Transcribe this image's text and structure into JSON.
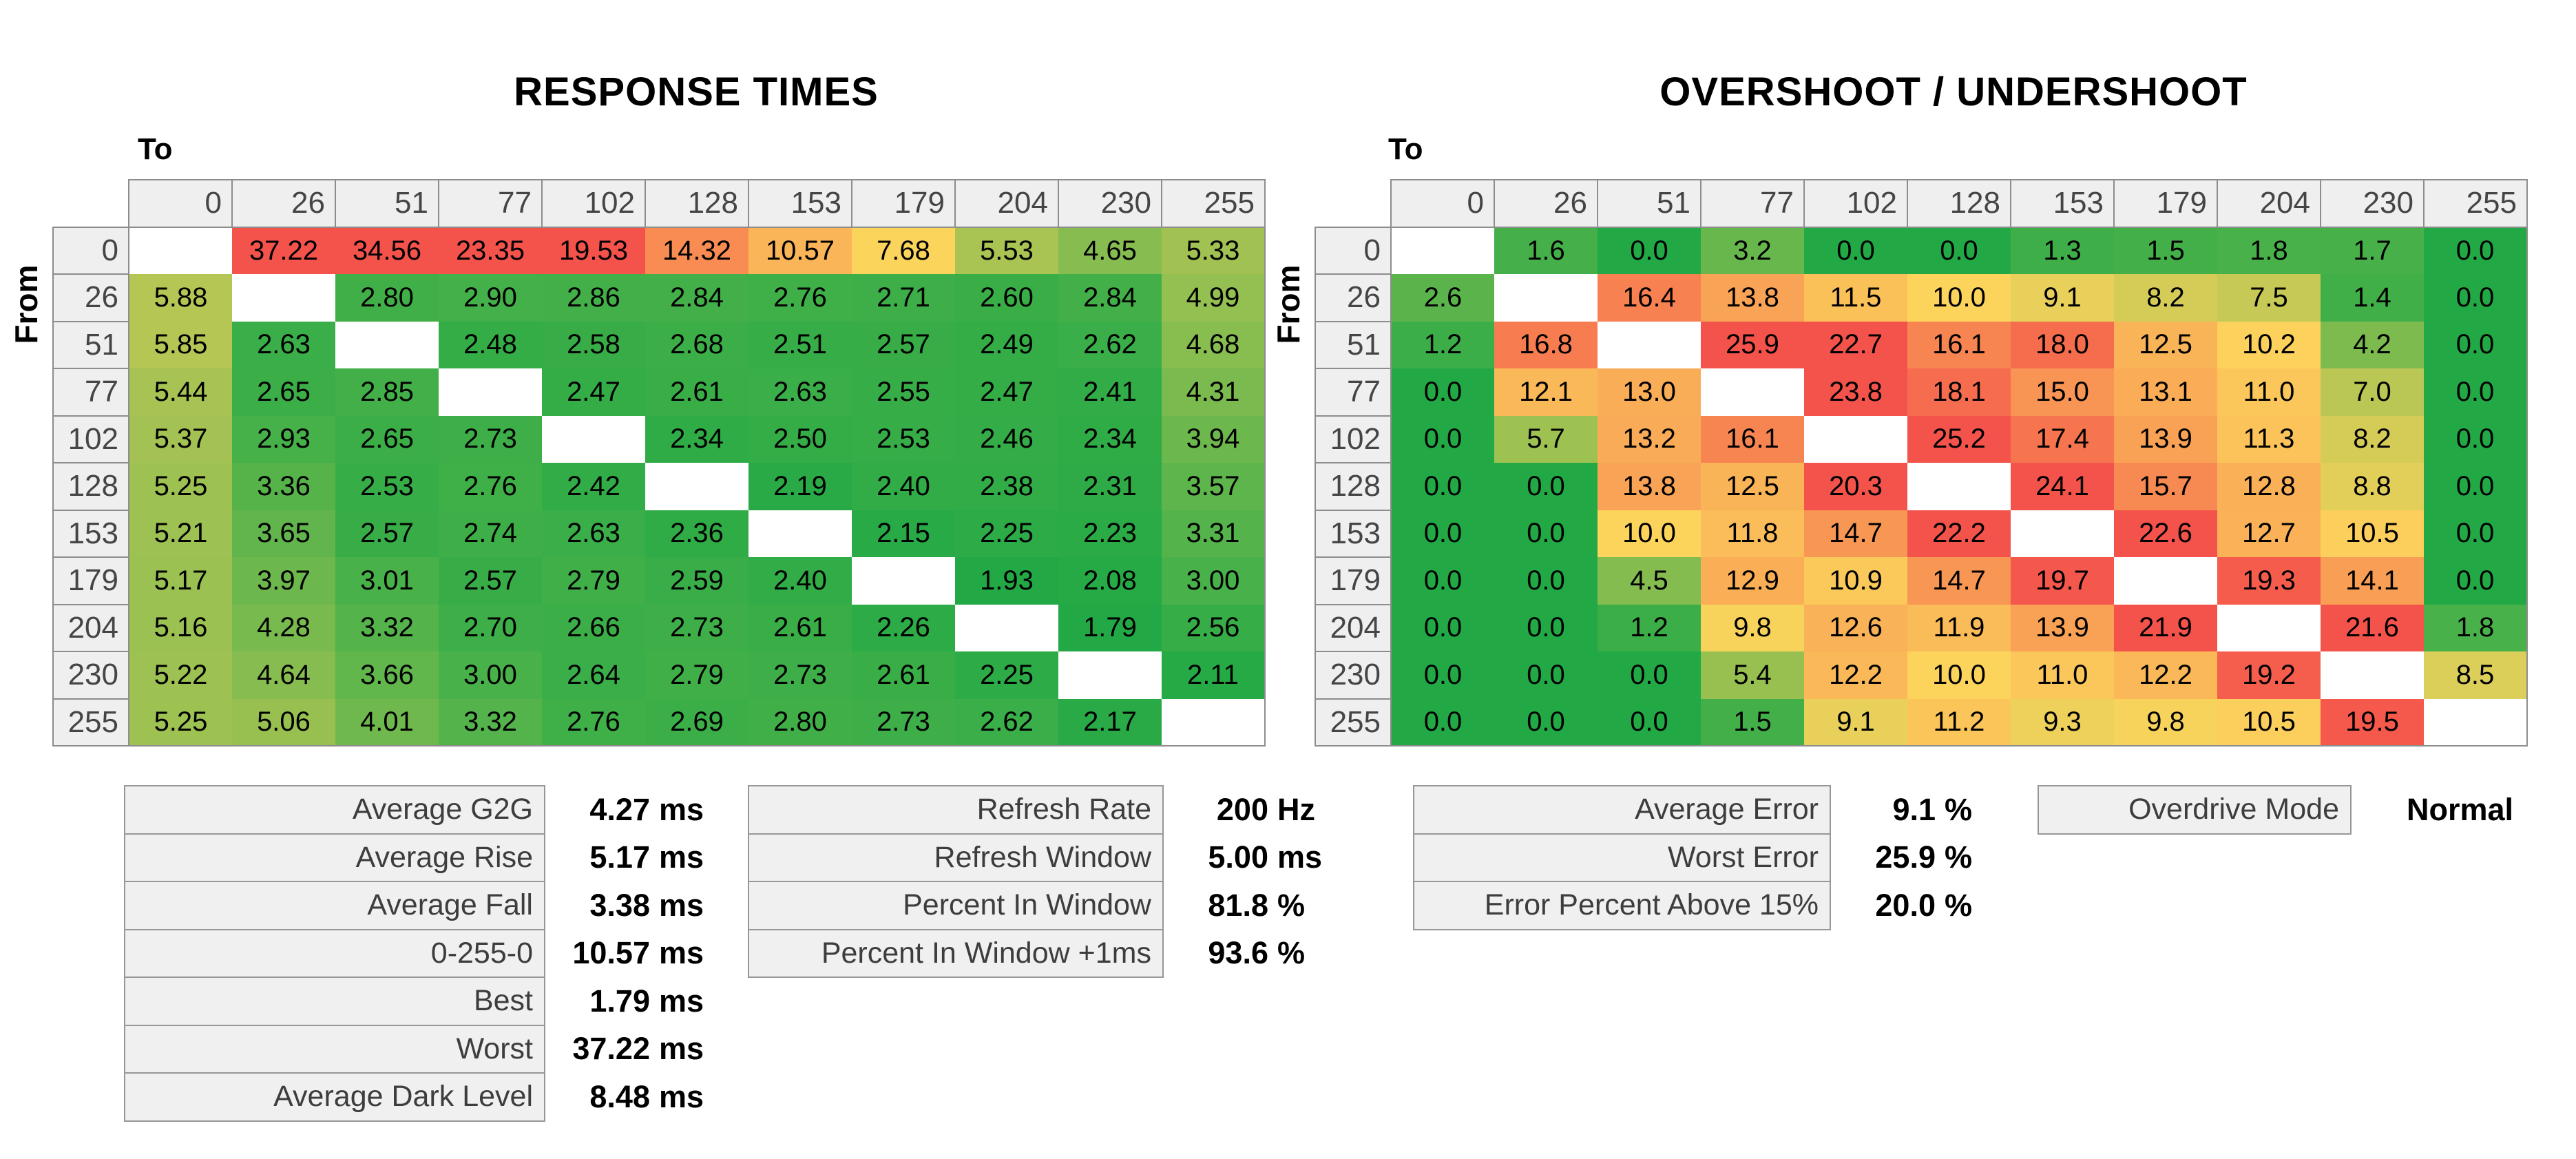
{
  "labels": {
    "to": "To",
    "from": "From"
  },
  "panels": [
    {
      "id": "response-times",
      "title": "RESPONSE TIMES"
    },
    {
      "id": "overshoot-undershoot",
      "title": "OVERSHOOT / UNDERSHOOT"
    }
  ],
  "chart_data": [
    {
      "type": "heatmap",
      "title": "RESPONSE TIMES",
      "unit": "ms",
      "x_label": "To",
      "y_label": "From",
      "levels": [
        "0",
        "26",
        "51",
        "77",
        "102",
        "128",
        "153",
        "179",
        "204",
        "230",
        "255"
      ],
      "rows": [
        [
          "",
          "37.22",
          "34.56",
          "23.35",
          "19.53",
          "14.32",
          "10.57",
          "7.68",
          "5.53",
          "4.65",
          "5.33"
        ],
        [
          "5.88",
          "",
          "2.80",
          "2.90",
          "2.86",
          "2.84",
          "2.76",
          "2.71",
          "2.60",
          "2.84",
          "4.99"
        ],
        [
          "5.85",
          "2.63",
          "",
          "2.48",
          "2.58",
          "2.68",
          "2.51",
          "2.57",
          "2.49",
          "2.62",
          "4.68"
        ],
        [
          "5.44",
          "2.65",
          "2.85",
          "",
          "2.47",
          "2.61",
          "2.63",
          "2.55",
          "2.47",
          "2.41",
          "4.31"
        ],
        [
          "5.37",
          "2.93",
          "2.65",
          "2.73",
          "",
          "2.34",
          "2.50",
          "2.53",
          "2.46",
          "2.34",
          "3.94"
        ],
        [
          "5.25",
          "3.36",
          "2.53",
          "2.76",
          "2.42",
          "",
          "2.19",
          "2.40",
          "2.38",
          "2.31",
          "3.57"
        ],
        [
          "5.21",
          "3.65",
          "2.57",
          "2.74",
          "2.63",
          "2.36",
          "",
          "2.15",
          "2.25",
          "2.23",
          "3.31"
        ],
        [
          "5.17",
          "3.97",
          "3.01",
          "2.57",
          "2.79",
          "2.59",
          "2.40",
          "",
          "1.93",
          "2.08",
          "3.00"
        ],
        [
          "5.16",
          "4.28",
          "3.32",
          "2.70",
          "2.66",
          "2.73",
          "2.61",
          "2.26",
          "",
          "1.79",
          "2.56"
        ],
        [
          "5.22",
          "4.64",
          "3.66",
          "3.00",
          "2.64",
          "2.79",
          "2.73",
          "2.61",
          "2.25",
          "",
          "2.11"
        ],
        [
          "5.25",
          "5.06",
          "4.01",
          "3.32",
          "2.76",
          "2.69",
          "2.80",
          "2.73",
          "2.62",
          "2.17",
          ""
        ]
      ],
      "color_scale": {
        "green": "#22a945",
        "yellow": "#fcd45c",
        "red": "#f4534b",
        "green_end": 2.0,
        "yellow_mid": 7.7,
        "red_start": 19.5
      }
    },
    {
      "type": "heatmap",
      "title": "OVERSHOOT / UNDERSHOOT",
      "unit": "%",
      "x_label": "To",
      "y_label": "From",
      "levels": [
        "0",
        "26",
        "51",
        "77",
        "102",
        "128",
        "153",
        "179",
        "204",
        "230",
        "255"
      ],
      "rows": [
        [
          "",
          "1.6",
          "0.0",
          "3.2",
          "0.0",
          "0.0",
          "1.3",
          "1.5",
          "1.8",
          "1.7",
          "0.0"
        ],
        [
          "2.6",
          "",
          "16.4",
          "13.8",
          "11.5",
          "10.0",
          "9.1",
          "8.2",
          "7.5",
          "1.4",
          "0.0"
        ],
        [
          "1.2",
          "16.8",
          "",
          "25.9",
          "22.7",
          "16.1",
          "18.0",
          "12.5",
          "10.2",
          "4.2",
          "0.0"
        ],
        [
          "0.0",
          "12.1",
          "13.0",
          "",
          "23.8",
          "18.1",
          "15.0",
          "13.1",
          "11.0",
          "7.0",
          "0.0"
        ],
        [
          "0.0",
          "5.7",
          "13.2",
          "16.1",
          "",
          "25.2",
          "17.4",
          "13.9",
          "11.3",
          "8.2",
          "0.0"
        ],
        [
          "0.0",
          "0.0",
          "13.8",
          "12.5",
          "20.3",
          "",
          "24.1",
          "15.7",
          "12.8",
          "8.8",
          "0.0"
        ],
        [
          "0.0",
          "0.0",
          "10.0",
          "11.8",
          "14.7",
          "22.2",
          "",
          "22.6",
          "12.7",
          "10.5",
          "0.0"
        ],
        [
          "0.0",
          "0.0",
          "4.5",
          "12.9",
          "10.9",
          "14.7",
          "19.7",
          "",
          "19.3",
          "14.1",
          "0.0"
        ],
        [
          "0.0",
          "0.0",
          "1.2",
          "9.8",
          "12.6",
          "11.9",
          "13.9",
          "21.9",
          "",
          "21.6",
          "1.8"
        ],
        [
          "0.0",
          "0.0",
          "0.0",
          "5.4",
          "12.2",
          "10.0",
          "11.0",
          "12.2",
          "19.2",
          "",
          "8.5"
        ],
        [
          "0.0",
          "0.0",
          "0.0",
          "1.5",
          "9.1",
          "11.2",
          "9.3",
          "9.8",
          "10.5",
          "19.5",
          ""
        ]
      ],
      "color_scale": {
        "green": "#22a945",
        "yellow": "#fcd45c",
        "red": "#f4534b",
        "green_end": 0.0,
        "yellow_mid": 10.0,
        "red_start": 20.0
      }
    }
  ],
  "stats_blocks": [
    {
      "id": "response-summary",
      "rows": [
        {
          "label": "Average G2G",
          "value": "4.27",
          "unit": "ms"
        },
        {
          "label": "Average Rise",
          "value": "5.17",
          "unit": "ms"
        },
        {
          "label": "Average Fall",
          "value": "3.38",
          "unit": "ms"
        },
        {
          "label": "0-255-0",
          "value": "10.57",
          "unit": "ms"
        },
        {
          "label": "Best",
          "value": "1.79",
          "unit": "ms"
        },
        {
          "label": "Worst",
          "value": "37.22",
          "unit": "ms"
        },
        {
          "label": "Average Dark Level",
          "value": "8.48",
          "unit": "ms"
        }
      ]
    },
    {
      "id": "refresh-summary",
      "rows": [
        {
          "label": "Refresh Rate",
          "value": "200",
          "unit": "Hz"
        },
        {
          "label": "Refresh Window",
          "value": "5.00",
          "unit": "ms"
        },
        {
          "label": "Percent In Window",
          "value": "81.8",
          "unit": "%"
        },
        {
          "label": "Percent In Window +1ms",
          "value": "93.6",
          "unit": "%"
        }
      ]
    },
    {
      "id": "error-summary",
      "rows": [
        {
          "label": "Average Error",
          "value": "9.1",
          "unit": "%"
        },
        {
          "label": "Worst Error",
          "value": "25.9",
          "unit": "%"
        },
        {
          "label": "Error Percent Above 15%",
          "value": "20.0",
          "unit": "%"
        }
      ]
    },
    {
      "id": "overdrive-summary",
      "rows": [
        {
          "label": "Overdrive Mode",
          "value": "Normal",
          "unit": ""
        }
      ]
    }
  ]
}
